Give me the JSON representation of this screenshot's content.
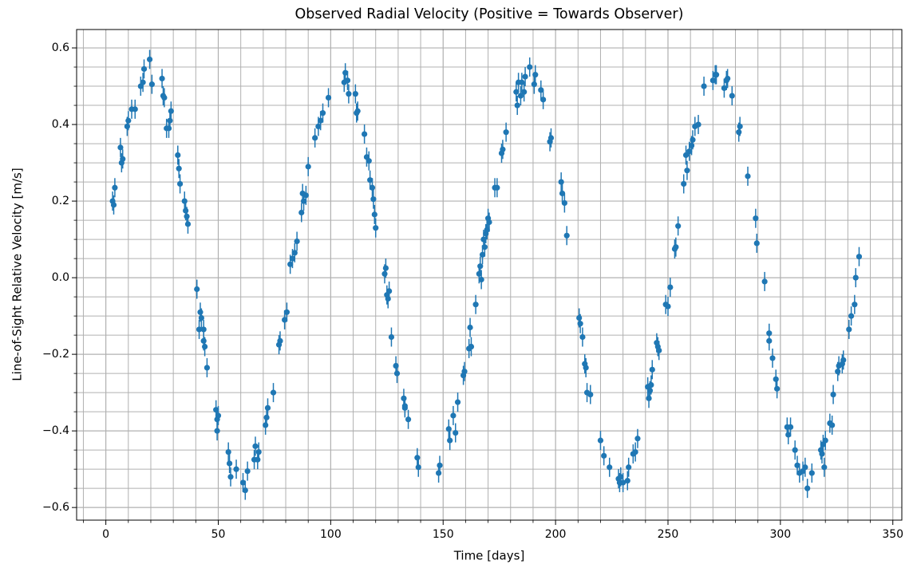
{
  "chart_data": {
    "type": "scatter",
    "title": "Observed Radial Velocity (Positive = Towards Observer)",
    "xlabel": "Time [days]",
    "ylabel": "Line-of-Sight Relative Velocity [m/s]",
    "color": "#1f77b4",
    "grid": true,
    "yerr": 0.025,
    "xlim": [
      -13,
      354
    ],
    "ylim": [
      -0.633,
      0.648
    ],
    "xticks": [
      0,
      50,
      100,
      150,
      200,
      250,
      300,
      350
    ],
    "yticks": [
      {
        "value": -0.6,
        "label": "−0.6"
      },
      {
        "value": -0.4,
        "label": "−0.4"
      },
      {
        "value": -0.2,
        "label": "−0.2"
      },
      {
        "value": 0,
        "label": "0.0"
      },
      0.2,
      0.4,
      0.6
    ],
    "minor_xticks": [
      -10,
      10,
      20,
      30,
      40,
      60,
      70,
      80,
      90,
      110,
      120,
      130,
      140,
      160,
      170,
      180,
      190,
      210,
      220,
      230,
      240,
      260,
      270,
      280,
      290,
      310,
      320,
      330,
      340
    ],
    "minor_yticks": [
      -0.55,
      -0.5,
      -0.45,
      -0.35,
      -0.3,
      -0.25,
      -0.15,
      -0.1,
      -0.05,
      0.05,
      0.1,
      0.15,
      0.25,
      0.3,
      0.35,
      0.45,
      0.5,
      0.55
    ],
    "x": [
      3,
      3.5,
      4,
      6.5,
      7,
      7.5,
      9.5,
      10,
      11.5,
      13,
      15.5,
      16.5,
      17,
      19.5,
      20.5,
      25,
      25.5,
      26,
      27,
      28,
      28.5,
      29,
      32,
      32.5,
      33,
      35,
      35.5,
      36,
      36.5,
      40.5,
      41.5,
      42,
      42.5,
      43.5,
      43.5,
      44,
      45,
      49,
      49.5,
      50,
      49.5,
      54.5,
      55,
      55.5,
      58,
      61,
      62,
      63,
      66,
      66.5,
      67.5,
      68,
      71,
      71.5,
      72,
      74.5,
      77,
      77.5,
      79.5,
      80.5,
      82,
      83,
      84,
      85,
      87,
      87.5,
      88,
      89,
      90,
      93,
      94.5,
      95.5,
      96.5,
      99,
      106,
      106.5,
      107.5,
      108,
      111,
      111.5,
      112,
      115,
      116,
      117,
      117.5,
      118.5,
      119,
      119.5,
      120,
      124,
      124.5,
      125,
      125.5,
      126,
      127,
      129,
      129.5,
      132.5,
      133,
      133,
      134.5,
      138.5,
      139,
      148,
      148.5,
      152.5,
      153,
      154.5,
      155.5,
      156.5,
      159,
      159.5,
      161.5,
      162,
      162.5,
      164.5,
      166,
      166.5,
      167,
      167.5,
      168,
      168.5,
      169,
      169.5,
      170,
      170.5,
      173,
      174,
      176,
      176.5,
      178,
      182.5,
      183,
      183.5,
      184.5,
      185,
      186,
      186.5,
      188.5,
      190.5,
      191,
      193.5,
      194.5,
      197.5,
      198,
      202.5,
      203,
      204,
      205,
      210.5,
      211,
      212,
      213,
      213.5,
      214,
      215.5,
      220,
      221.5,
      224,
      228,
      228.5,
      229,
      230,
      232,
      232.5,
      234.5,
      235.5,
      236.5,
      241,
      241.5,
      242,
      242.5,
      243,
      245,
      245.5,
      246,
      249,
      250,
      251,
      253,
      253.5,
      254.5,
      257,
      258,
      258.5,
      259.5,
      260.5,
      261,
      262,
      263.5,
      266,
      270,
      271,
      271.5,
      275,
      276,
      276.5,
      278.5,
      281.5,
      282,
      285.5,
      289,
      289.5,
      293,
      295,
      295,
      296.5,
      298,
      298.5,
      303,
      303.5,
      304.5,
      306.5,
      307.5,
      308.5,
      310,
      311,
      312,
      314,
      318,
      318.5,
      319,
      319.5,
      320,
      322,
      323,
      323.5,
      325.5,
      326,
      327.5,
      328,
      330.5,
      331.5,
      333,
      333.5,
      335
    ],
    "values": [
      0.2,
      0.19,
      0.235,
      0.34,
      0.3,
      0.31,
      0.395,
      0.41,
      0.44,
      0.44,
      0.5,
      0.51,
      0.545,
      0.57,
      0.505,
      0.52,
      0.475,
      0.47,
      0.39,
      0.39,
      0.41,
      0.435,
      0.32,
      0.285,
      0.245,
      0.2,
      0.175,
      0.16,
      0.14,
      -0.03,
      -0.135,
      -0.09,
      -0.105,
      -0.135,
      -0.165,
      -0.18,
      -0.235,
      -0.345,
      -0.37,
      -0.36,
      -0.4,
      -0.455,
      -0.485,
      -0.52,
      -0.5,
      -0.535,
      -0.555,
      -0.505,
      -0.475,
      -0.44,
      -0.475,
      -0.455,
      -0.385,
      -0.365,
      -0.34,
      -0.3,
      -0.175,
      -0.165,
      -0.11,
      -0.09,
      0.035,
      0.05,
      0.065,
      0.095,
      0.17,
      0.22,
      0.2,
      0.215,
      0.29,
      0.365,
      0.395,
      0.41,
      0.43,
      0.47,
      0.51,
      0.535,
      0.515,
      0.48,
      0.48,
      0.43,
      0.435,
      0.375,
      0.315,
      0.305,
      0.255,
      0.235,
      0.205,
      0.165,
      0.13,
      0.01,
      0.025,
      -0.045,
      -0.055,
      -0.035,
      -0.155,
      -0.23,
      -0.25,
      -0.315,
      -0.335,
      -0.34,
      -0.37,
      -0.47,
      -0.495,
      -0.51,
      -0.49,
      -0.395,
      -0.425,
      -0.36,
      -0.405,
      -0.325,
      -0.255,
      -0.245,
      -0.185,
      -0.13,
      -0.18,
      -0.07,
      0.01,
      0.03,
      -0.005,
      0.06,
      0.1,
      0.08,
      0.115,
      0.125,
      0.155,
      0.145,
      0.235,
      0.235,
      0.325,
      0.335,
      0.38,
      0.485,
      0.45,
      0.51,
      0.475,
      0.51,
      0.485,
      0.525,
      0.55,
      0.505,
      0.53,
      0.49,
      0.465,
      0.355,
      0.365,
      0.25,
      0.22,
      0.195,
      0.11,
      -0.105,
      -0.12,
      -0.155,
      -0.225,
      -0.235,
      -0.3,
      -0.305,
      -0.425,
      -0.465,
      -0.495,
      -0.525,
      -0.535,
      -0.52,
      -0.535,
      -0.53,
      -0.495,
      -0.46,
      -0.455,
      -0.42,
      -0.285,
      -0.315,
      -0.295,
      -0.28,
      -0.24,
      -0.17,
      -0.18,
      -0.19,
      -0.07,
      -0.075,
      -0.025,
      0.075,
      0.08,
      0.135,
      0.245,
      0.32,
      0.28,
      0.33,
      0.345,
      0.36,
      0.395,
      0.4,
      0.5,
      0.515,
      0.53,
      0.53,
      0.495,
      0.515,
      0.52,
      0.475,
      0.38,
      0.395,
      0.265,
      0.155,
      0.09,
      -0.01,
      -0.145,
      -0.165,
      -0.21,
      -0.265,
      -0.29,
      -0.39,
      -0.41,
      -0.39,
      -0.45,
      -0.49,
      -0.51,
      -0.505,
      -0.495,
      -0.55,
      -0.51,
      -0.45,
      -0.46,
      -0.435,
      -0.495,
      -0.425,
      -0.38,
      -0.385,
      -0.305,
      -0.245,
      -0.23,
      -0.225,
      -0.215,
      -0.135,
      -0.1,
      -0.07,
      0,
      0.055
    ]
  }
}
